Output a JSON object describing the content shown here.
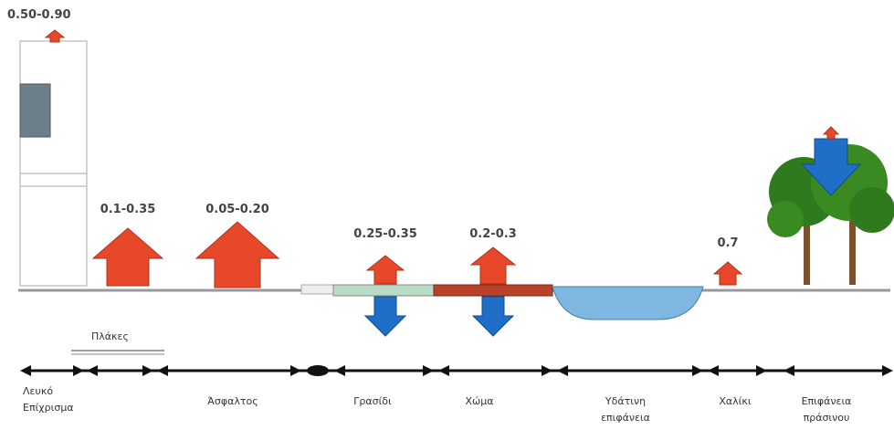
{
  "albedo_values": {
    "white_plaster": "0.50-0.90",
    "tiles": "0.1-0.35",
    "asphalt": "0.05-0.20",
    "grass": "0.25-0.35",
    "soil": "0.2-0.3",
    "gravel": "0.7"
  },
  "surfaces": [
    {
      "lines": [
        "Λευκό",
        "Επίχρισμα"
      ]
    },
    {
      "lines": [
        "Πλάκες"
      ]
    },
    {
      "lines": [
        "Άσφαλτος"
      ]
    },
    {
      "lines": [
        "Γρασίδι"
      ]
    },
    {
      "lines": [
        "Χώμα"
      ]
    },
    {
      "lines": [
        "Υδάτινη",
        "επιφάνεια"
      ]
    },
    {
      "lines": [
        "Χαλίκι"
      ]
    },
    {
      "lines": [
        "Επιφάνεια",
        "πράσινου"
      ]
    }
  ]
}
